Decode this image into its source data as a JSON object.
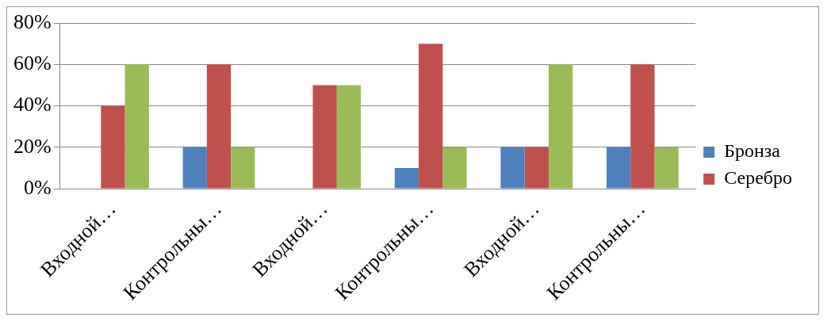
{
  "chart_data": {
    "type": "bar",
    "categories": [
      "Входной…",
      "Контрольны…",
      "Входной…",
      "Контрольны…",
      "Входной…",
      "Контрольны…"
    ],
    "series": [
      {
        "name": "Бронза",
        "color": "#4f81bd",
        "values": [
          0,
          20,
          0,
          10,
          20,
          20
        ]
      },
      {
        "name": "Серебро",
        "color": "#c0504d",
        "values": [
          40,
          60,
          50,
          70,
          20,
          60
        ]
      },
      {
        "color": "#9bbb59",
        "values": [
          60,
          20,
          50,
          20,
          60,
          20
        ]
      }
    ],
    "ylim": [
      0,
      80
    ],
    "yticks": [
      {
        "value": 0,
        "label": "0%"
      },
      {
        "value": 20,
        "label": "20%"
      },
      {
        "value": 40,
        "label": "40%"
      },
      {
        "value": 60,
        "label": "60%"
      },
      {
        "value": 80,
        "label": "80%"
      }
    ],
    "grid": "y",
    "legend": "right"
  }
}
